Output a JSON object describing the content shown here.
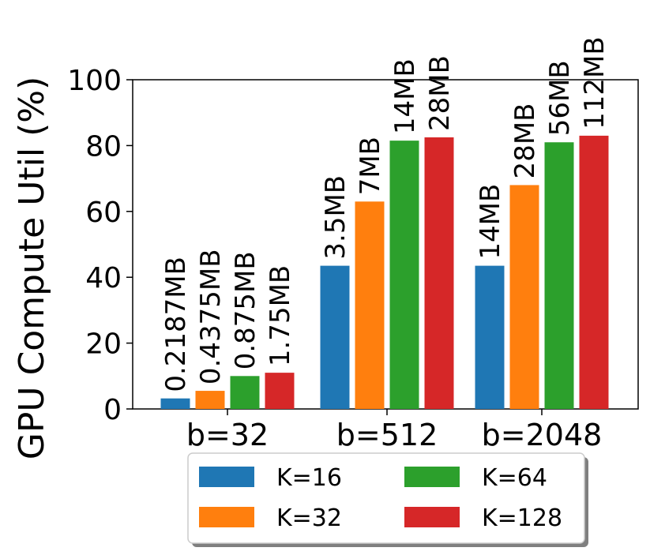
{
  "chart_data": {
    "type": "bar",
    "categories": [
      "b=32",
      "b=512",
      "b=2048"
    ],
    "series": [
      {
        "name": "K=16",
        "color": "#1f77b4",
        "values": [
          3.2,
          43.5,
          43.5
        ],
        "labels": [
          "0.2187MB",
          "3.5MB",
          "14MB"
        ]
      },
      {
        "name": "K=32",
        "color": "#ff7f0e",
        "values": [
          5.5,
          63.0,
          68.0
        ],
        "labels": [
          "0.4375MB",
          "7MB",
          "28MB"
        ]
      },
      {
        "name": "K=64",
        "color": "#2ca02c",
        "values": [
          10.0,
          81.5,
          81.0
        ],
        "labels": [
          "0.875MB",
          "14MB",
          "56MB"
        ]
      },
      {
        "name": "K=128",
        "color": "#d62728",
        "values": [
          11.0,
          82.5,
          83.0
        ],
        "labels": [
          "1.75MB",
          "28MB",
          "112MB"
        ]
      }
    ],
    "ylabel": "GPU Compute Util (%)",
    "xlabel": "",
    "ylim": [
      0,
      100
    ],
    "yticks": [
      0,
      20,
      40,
      60,
      80,
      100
    ],
    "grid": false,
    "legend_position": "bottom-center"
  }
}
